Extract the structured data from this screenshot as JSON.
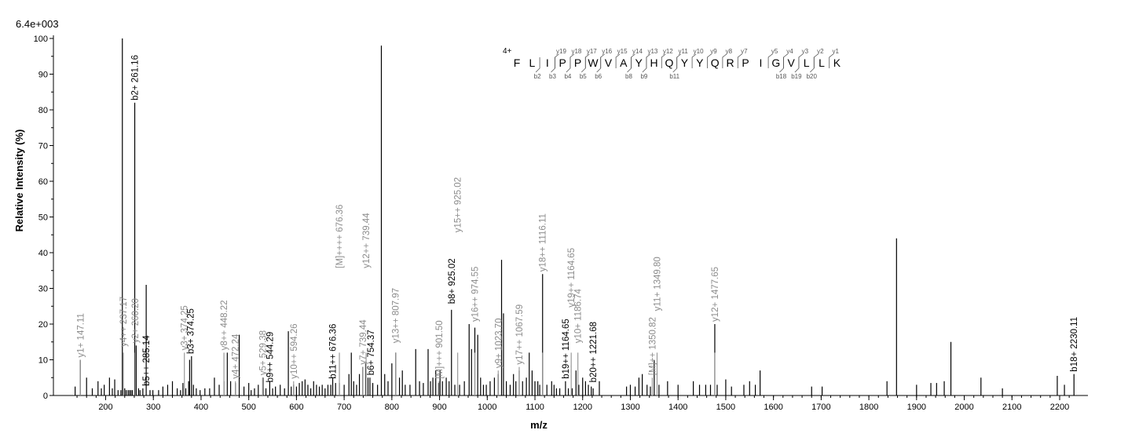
{
  "chart_data": {
    "type": "bar",
    "max_intensity_label": "6.4e+003",
    "xlabel": "m/z",
    "ylabel": "Relative   Intensity (%)",
    "xlim": [
      132,
      2232
    ],
    "ylim": [
      0,
      100
    ],
    "x_ticks": [
      200,
      300,
      400,
      500,
      600,
      700,
      800,
      900,
      1000,
      1100,
      1200,
      1300,
      1400,
      1500,
      1600,
      1700,
      1800,
      1900,
      2000,
      2100,
      2200
    ],
    "y_ticks": [
      0,
      10,
      20,
      30,
      40,
      50,
      60,
      70,
      80,
      90,
      100
    ],
    "minor_x_step": 20,
    "grid": false,
    "peaks": [
      [
        136,
        2.5
      ],
      [
        147,
        10
      ],
      [
        160,
        5
      ],
      [
        172,
        2
      ],
      [
        184,
        4
      ],
      [
        191,
        2
      ],
      [
        197,
        3
      ],
      [
        208,
        5
      ],
      [
        214,
        2
      ],
      [
        219,
        4.5
      ],
      [
        226,
        1.5
      ],
      [
        232,
        1.5
      ],
      [
        237,
        1.5
      ],
      [
        240,
        2
      ],
      [
        243,
        1.5
      ],
      [
        247,
        1.5
      ],
      [
        250,
        1.5
      ],
      [
        253,
        1.5
      ],
      [
        256,
        1.5
      ],
      [
        235,
        100
      ],
      [
        261,
        82
      ],
      [
        264,
        14
      ],
      [
        269,
        2
      ],
      [
        272,
        1.5
      ],
      [
        278,
        2
      ],
      [
        285,
        31
      ],
      [
        293,
        1.5
      ],
      [
        299,
        1.5
      ],
      [
        311,
        1.5
      ],
      [
        320,
        2.5
      ],
      [
        330,
        3
      ],
      [
        340,
        4
      ],
      [
        350,
        2
      ],
      [
        357,
        1.5
      ],
      [
        362,
        3.5
      ],
      [
        368,
        2
      ],
      [
        374,
        4
      ],
      [
        376,
        10
      ],
      [
        380,
        11
      ],
      [
        384,
        3
      ],
      [
        390,
        2
      ],
      [
        398,
        1.5
      ],
      [
        408,
        2
      ],
      [
        418,
        2
      ],
      [
        428,
        5
      ],
      [
        438,
        3
      ],
      [
        448,
        4
      ],
      [
        455,
        12
      ],
      [
        462,
        4
      ],
      [
        472,
        3.5
      ],
      [
        480,
        17
      ],
      [
        490,
        2.5
      ],
      [
        500,
        3.5
      ],
      [
        505,
        1.5
      ],
      [
        512,
        2
      ],
      [
        520,
        3
      ],
      [
        530,
        5
      ],
      [
        536,
        2
      ],
      [
        544,
        4
      ],
      [
        550,
        2
      ],
      [
        556,
        2.5
      ],
      [
        566,
        3
      ],
      [
        575,
        2
      ],
      [
        583,
        18
      ],
      [
        589,
        2.5
      ],
      [
        594,
        3
      ],
      [
        600,
        2.5
      ],
      [
        606,
        3.5
      ],
      [
        612,
        4
      ],
      [
        618,
        4.5
      ],
      [
        624,
        3
      ],
      [
        630,
        2
      ],
      [
        636,
        4
      ],
      [
        642,
        3
      ],
      [
        648,
        2.5
      ],
      [
        654,
        3
      ],
      [
        660,
        2
      ],
      [
        666,
        3
      ],
      [
        672,
        3
      ],
      [
        676,
        5
      ],
      [
        682,
        3.5
      ],
      [
        690,
        3.5
      ],
      [
        700,
        3
      ],
      [
        710,
        6
      ],
      [
        715,
        12
      ],
      [
        720,
        4
      ],
      [
        726,
        3
      ],
      [
        732,
        6
      ],
      [
        739,
        8
      ],
      [
        745,
        9
      ],
      [
        750,
        5
      ],
      [
        754,
        5
      ],
      [
        760,
        3.5
      ],
      [
        770,
        3
      ],
      [
        778,
        98
      ],
      [
        785,
        6
      ],
      [
        792,
        4
      ],
      [
        800,
        9
      ],
      [
        808,
        12
      ],
      [
        816,
        5
      ],
      [
        822,
        7
      ],
      [
        828,
        3
      ],
      [
        838,
        3
      ],
      [
        850,
        13
      ],
      [
        858,
        4
      ],
      [
        866,
        3.5
      ],
      [
        876,
        13
      ],
      [
        881,
        4
      ],
      [
        886,
        5
      ],
      [
        892,
        7
      ],
      [
        898,
        3.5
      ],
      [
        901,
        7
      ],
      [
        906,
        4
      ],
      [
        914,
        5
      ],
      [
        920,
        4
      ],
      [
        925,
        24
      ],
      [
        932,
        3
      ],
      [
        942,
        3
      ],
      [
        952,
        4
      ],
      [
        962,
        20
      ],
      [
        967,
        13
      ],
      [
        974,
        19
      ],
      [
        980,
        17
      ],
      [
        986,
        5
      ],
      [
        992,
        3
      ],
      [
        998,
        3
      ],
      [
        1006,
        4
      ],
      [
        1015,
        5
      ],
      [
        1023,
        6
      ],
      [
        1030,
        38
      ],
      [
        1034,
        23
      ],
      [
        1040,
        4
      ],
      [
        1048,
        3
      ],
      [
        1055,
        6
      ],
      [
        1060,
        4
      ],
      [
        1067,
        7
      ],
      [
        1074,
        4
      ],
      [
        1082,
        5
      ],
      [
        1088,
        12
      ],
      [
        1094,
        7
      ],
      [
        1100,
        4
      ],
      [
        1106,
        4
      ],
      [
        1110,
        3
      ],
      [
        1116,
        34
      ],
      [
        1125,
        3
      ],
      [
        1135,
        4
      ],
      [
        1140,
        3
      ],
      [
        1145,
        2
      ],
      [
        1152,
        2
      ],
      [
        1164,
        4
      ],
      [
        1170,
        2
      ],
      [
        1178,
        2
      ],
      [
        1186,
        7
      ],
      [
        1192,
        3
      ],
      [
        1200,
        5
      ],
      [
        1206,
        4
      ],
      [
        1212,
        3
      ],
      [
        1218,
        2.5
      ],
      [
        1222,
        2
      ],
      [
        1235,
        4
      ],
      [
        1292,
        2.5
      ],
      [
        1300,
        3
      ],
      [
        1310,
        2.5
      ],
      [
        1318,
        5
      ],
      [
        1325,
        6
      ],
      [
        1335,
        3
      ],
      [
        1342,
        2.5
      ],
      [
        1350,
        10
      ],
      [
        1360,
        3
      ],
      [
        1378,
        4
      ],
      [
        1400,
        3
      ],
      [
        1432,
        4
      ],
      [
        1445,
        3
      ],
      [
        1458,
        3
      ],
      [
        1468,
        3
      ],
      [
        1477,
        20
      ],
      [
        1482,
        3
      ],
      [
        1500,
        4.5
      ],
      [
        1512,
        2.5
      ],
      [
        1538,
        3
      ],
      [
        1550,
        4
      ],
      [
        1562,
        3
      ],
      [
        1572,
        7
      ],
      [
        1680,
        2.5
      ],
      [
        1702,
        2.5
      ],
      [
        1838,
        4
      ],
      [
        1858,
        44
      ],
      [
        1900,
        3
      ],
      [
        1930,
        3.5
      ],
      [
        1942,
        3.5
      ],
      [
        1958,
        4
      ],
      [
        1972,
        15
      ],
      [
        2035,
        5
      ],
      [
        2080,
        2
      ],
      [
        2195,
        5.5
      ],
      [
        2210,
        3
      ],
      [
        2230,
        6
      ]
    ],
    "labels": [
      {
        "text": "y1+ 147.11",
        "x": 147,
        "h": 10,
        "color": "gray"
      },
      {
        "text": "y4++ 237.17",
        "x": 237,
        "h": 13,
        "color": "gray"
      },
      {
        "text": "b2+ 261.16",
        "x": 261,
        "h": 82,
        "color": "black"
      },
      {
        "text": "y2+ 260.20",
        "x": 262,
        "h": 14,
        "color": "gray"
      },
      {
        "text": "b5++ 285.14",
        "x": 285,
        "h": 2,
        "color": "black"
      },
      {
        "text": "y3+ 374.25",
        "x": 365,
        "h": 12,
        "color": "gray"
      },
      {
        "text": "b3+ 374.25",
        "x": 378,
        "h": 11,
        "color": "black"
      },
      {
        "text": "y8++ 448.22",
        "x": 448,
        "h": 12,
        "color": "gray"
      },
      {
        "text": "y4+ 472.24",
        "x": 472,
        "h": 4,
        "color": "gray"
      },
      {
        "text": "y5+ 529.38",
        "x": 529,
        "h": 5,
        "color": "gray"
      },
      {
        "text": "b9++ 544.29",
        "x": 544,
        "h": 3,
        "color": "black"
      },
      {
        "text": "y10++ 594.26",
        "x": 594,
        "h": 4,
        "color": "gray"
      },
      {
        "text": "b11++ 676.36",
        "x": 676,
        "h": 4,
        "color": "black"
      },
      {
        "text": "[M]++++ 676.36",
        "x": 690,
        "h": 35,
        "color": "gray"
      },
      {
        "text": "y7+ 739.44",
        "x": 739,
        "h": 8,
        "color": "gray"
      },
      {
        "text": "y12++ 739.44",
        "x": 746,
        "h": 35,
        "color": "gray"
      },
      {
        "text": "b6+ 754.37",
        "x": 756,
        "h": 5,
        "color": "black"
      },
      {
        "text": "y13++ 807.97",
        "x": 808,
        "h": 14,
        "color": "gray"
      },
      {
        "text": "[M]+++ 901.50",
        "x": 899,
        "h": 4,
        "color": "gray"
      },
      {
        "text": "b8+ 925.02",
        "x": 925,
        "h": 25,
        "color": "black"
      },
      {
        "text": "y15++ 925.02",
        "x": 938,
        "h": 45,
        "color": "gray"
      },
      {
        "text": "y16++ 974.55",
        "x": 974,
        "h": 20,
        "color": "gray"
      },
      {
        "text": "y9+ 1023.70",
        "x": 1023,
        "h": 7,
        "color": "gray"
      },
      {
        "text": "y17++ 1067.59",
        "x": 1067,
        "h": 8,
        "color": "gray"
      },
      {
        "text": "y18++ 1116.11",
        "x": 1116,
        "h": 34,
        "color": "gray"
      },
      {
        "text": "b19++ 1164.65",
        "x": 1164,
        "h": 4,
        "color": "black"
      },
      {
        "text": "y19++ 1164.65",
        "x": 1176,
        "h": 24,
        "color": "gray"
      },
      {
        "text": "y10+ 1186.74",
        "x": 1190,
        "h": 14,
        "color": "gray"
      },
      {
        "text": "b20++ 1221.68",
        "x": 1222,
        "h": 3,
        "color": "black"
      },
      {
        "text": "[M]++ 1350.82",
        "x": 1346,
        "h": 5,
        "color": "gray"
      },
      {
        "text": "y11+ 1349.80",
        "x": 1356,
        "h": 23,
        "color": "gray"
      },
      {
        "text": "y12+ 1477.65",
        "x": 1477,
        "h": 20,
        "color": "gray"
      },
      {
        "text": "b18+ 2230.11",
        "x": 2230,
        "h": 6,
        "color": "black"
      }
    ],
    "sequence": {
      "charge": "4+",
      "residues": [
        "F",
        "L",
        "I",
        "P",
        "P",
        "W",
        "V",
        "A",
        "Y",
        "H",
        "Q",
        "Y",
        "Y",
        "Q",
        "R",
        "P",
        "I",
        "G",
        "V",
        "L",
        "L",
        "K"
      ],
      "y_ions": [
        {
          "after": 3,
          "label": "y19"
        },
        {
          "after": 4,
          "label": "y18"
        },
        {
          "after": 5,
          "label": "y17"
        },
        {
          "after": 6,
          "label": "y16"
        },
        {
          "after": 7,
          "label": "y15"
        },
        {
          "after": 8,
          "label": "y14"
        },
        {
          "after": 9,
          "label": "y13"
        },
        {
          "after": 10,
          "label": "y12"
        },
        {
          "after": 11,
          "label": "y11"
        },
        {
          "after": 12,
          "label": "y10"
        },
        {
          "after": 13,
          "label": "y9"
        },
        {
          "after": 14,
          "label": "y8"
        },
        {
          "after": 15,
          "label": "y7"
        },
        {
          "after": 17,
          "label": "y5"
        },
        {
          "after": 18,
          "label": "y4"
        },
        {
          "after": 19,
          "label": "y3"
        },
        {
          "after": 20,
          "label": "y2"
        },
        {
          "after": 21,
          "label": "y1"
        }
      ],
      "b_ions": [
        {
          "after": 2,
          "label": "b2"
        },
        {
          "after": 3,
          "label": "b3"
        },
        {
          "after": 4,
          "label": "b4"
        },
        {
          "after": 5,
          "label": "b5"
        },
        {
          "after": 6,
          "label": "b6"
        },
        {
          "after": 8,
          "label": "b8"
        },
        {
          "after": 9,
          "label": "b9"
        },
        {
          "after": 11,
          "label": "b11"
        },
        {
          "after": 18,
          "label": "b18"
        },
        {
          "after": 19,
          "label": "b19"
        },
        {
          "after": 20,
          "label": "b20"
        }
      ]
    }
  }
}
